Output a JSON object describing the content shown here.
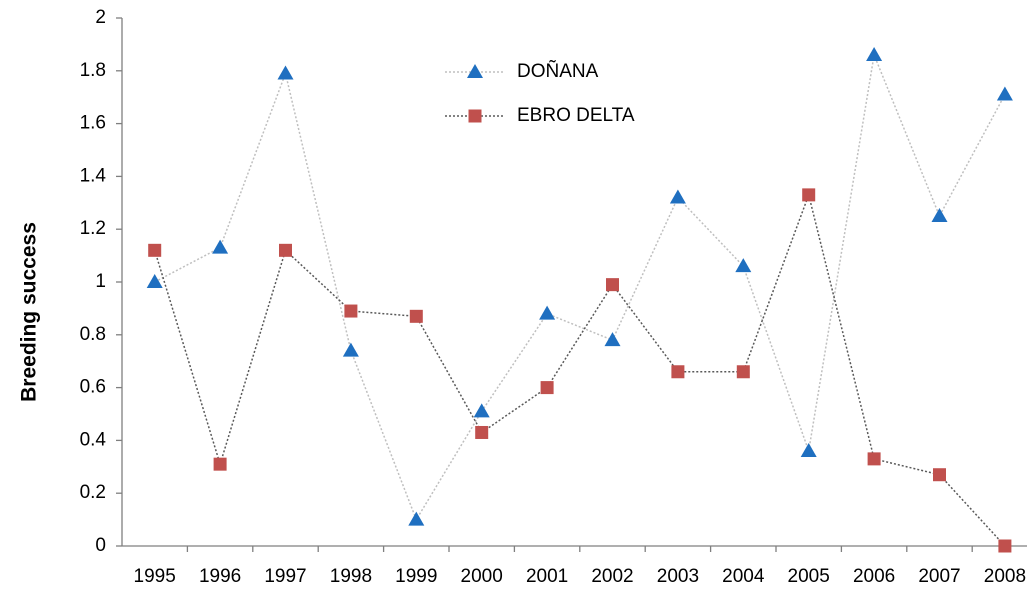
{
  "chart_data": {
    "type": "line",
    "y_label": "Breeding success",
    "categories": [
      "1995",
      "1996",
      "1997",
      "1998",
      "1999",
      "2000",
      "2001",
      "2002",
      "2003",
      "2004",
      "2005",
      "2006",
      "2007",
      "2008"
    ],
    "series": [
      {
        "name": "DOÑANA",
        "color": "#1f6fc0",
        "line_color": "#bfbfbf",
        "marker": "triangle",
        "values": [
          1.0,
          1.13,
          1.79,
          0.74,
          0.1,
          0.51,
          0.88,
          0.78,
          1.32,
          1.06,
          0.36,
          1.86,
          1.25,
          1.71
        ]
      },
      {
        "name": "EBRO DELTA",
        "color": "#c0504d",
        "line_color": "#595959",
        "marker": "square",
        "values": [
          1.12,
          0.31,
          1.12,
          0.89,
          0.87,
          0.43,
          0.6,
          0.99,
          0.66,
          0.66,
          1.33,
          0.33,
          0.27,
          0.0
        ]
      }
    ],
    "ylim": [
      0,
      2
    ],
    "yticks": [
      0,
      0.2,
      0.4,
      0.6,
      0.8,
      1,
      1.2,
      1.4,
      1.6,
      1.8,
      2
    ],
    "grid": false,
    "legend": "upper center"
  }
}
